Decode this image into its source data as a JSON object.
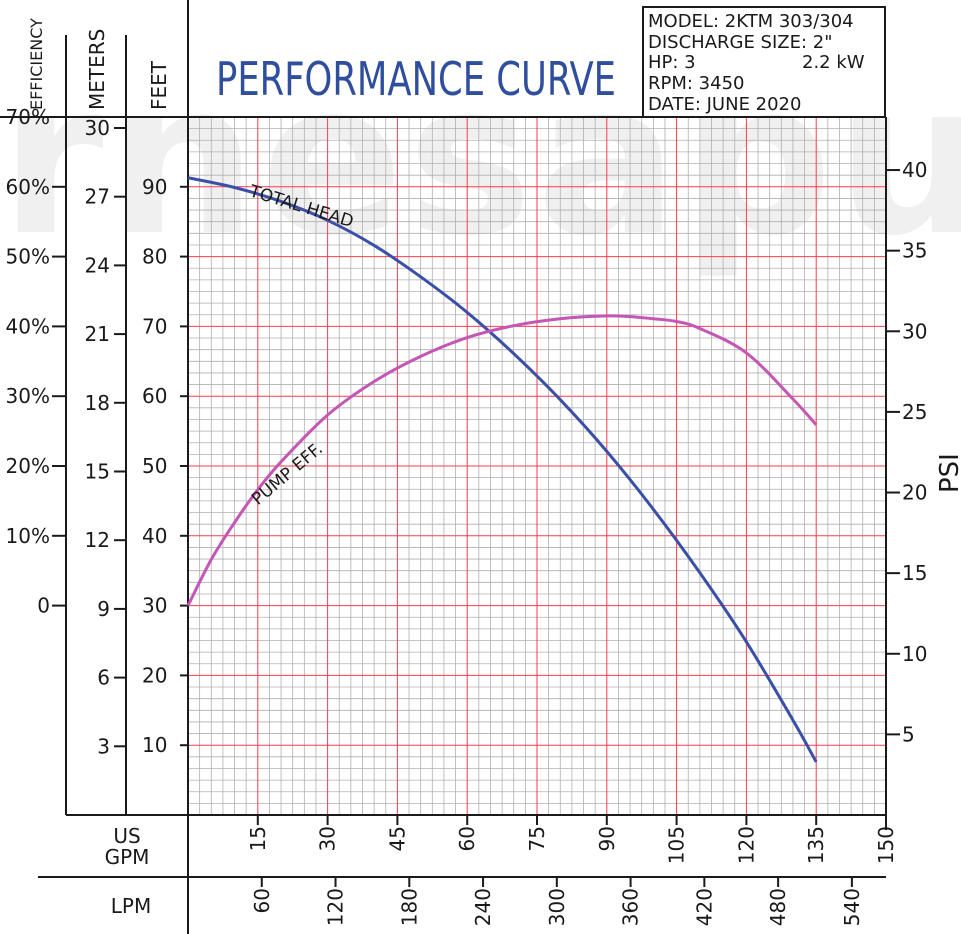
{
  "header": {
    "title": "PERFORMANCE CURVE",
    "columns": [
      "EFFICIENCY",
      "METERS",
      "FEET"
    ],
    "watermark": "rnesapun",
    "info": {
      "model": "MODEL: 2KTM 303/304",
      "discharge": "DISCHARGE SIZE: 2\"",
      "hp": "HP: 3",
      "kw": "2.2 kW",
      "rpm": "RPM: 3450",
      "date": "DATE: JUNE 2020"
    }
  },
  "colors": {
    "grid_major": "#ff3b4e",
    "grid_minor": "#b0b0b0",
    "total_head": "#3a4fa8",
    "efficiency": "#c456b5",
    "title": "#2f4f9e"
  },
  "chart_data": {
    "type": "line",
    "title": "PERFORMANCE CURVE",
    "xlabel": "US GPM",
    "x2label": "LPM",
    "ylabel_left": [
      "EFFICIENCY",
      "METERS",
      "FEET"
    ],
    "ylabel_right": "PSI",
    "xlim": [
      0,
      150
    ],
    "ylim_feet": [
      0,
      100
    ],
    "grid": true,
    "x_ticks": [
      "15",
      "30",
      "45",
      "60",
      "75",
      "90",
      "105",
      "120",
      "135",
      "150"
    ],
    "lpm_ticks": [
      "60",
      "120",
      "180",
      "240",
      "300",
      "360",
      "420",
      "480",
      "540"
    ],
    "feet_ticks": [
      "10",
      "20",
      "30",
      "40",
      "50",
      "60",
      "70",
      "80",
      "90"
    ],
    "meters_ticks": [
      "3",
      "6",
      "9",
      "12",
      "15",
      "18",
      "21",
      "24",
      "27",
      "30"
    ],
    "efficiency_ticks": [
      "0",
      "10%",
      "20%",
      "30%",
      "40%",
      "50%",
      "60%",
      "70%"
    ],
    "psi_ticks": [
      "5",
      "10",
      "15",
      "20",
      "25",
      "30",
      "35",
      "40"
    ],
    "series": [
      {
        "name": "TOTAL HEAD",
        "unit": "feet",
        "x": [
          0,
          10,
          20,
          30,
          40,
          50,
          60,
          70,
          80,
          90,
          100,
          110,
          120,
          130,
          135
        ],
        "y": [
          91.3,
          89.9,
          87.9,
          85.2,
          81.6,
          77.1,
          72,
          66.1,
          59.5,
          52.1,
          43.8,
          34.7,
          24.8,
          13.6,
          7.6
        ]
      },
      {
        "name": "PUMP EFF.",
        "unit": "percent",
        "x": [
          0,
          5,
          10,
          15,
          20,
          30,
          40,
          50,
          60,
          70,
          80,
          90,
          95,
          100,
          105,
          110,
          120,
          130,
          135
        ],
        "y": [
          0,
          6.6,
          11.9,
          16.6,
          20.6,
          27.3,
          32.1,
          35.7,
          38.4,
          40.1,
          41.1,
          41.5,
          41.4,
          41.1,
          40.7,
          39.7,
          36.2,
          29.6,
          25.9
        ]
      }
    ]
  }
}
